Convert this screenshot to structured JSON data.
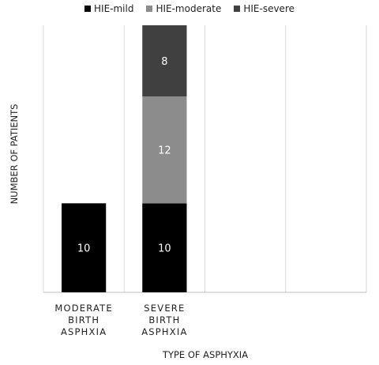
{
  "chart_data": {
    "type": "bar",
    "stacked": true,
    "categories": [
      [
        "MODERATE",
        "BIRTH",
        "ASPHXIA"
      ],
      [
        "SEVERE",
        "BIRTH",
        "ASPHXIA"
      ],
      [],
      []
    ],
    "series": [
      {
        "name": "HIE-mild",
        "color": "#000000",
        "values": [
          10,
          10,
          null,
          null
        ]
      },
      {
        "name": "HIE-moderate",
        "color": "#8c8c8c",
        "values": [
          null,
          12,
          null,
          null
        ]
      },
      {
        "name": "HIE-severe",
        "color": "#404040",
        "values": [
          null,
          8,
          null,
          null
        ]
      }
    ],
    "xlabel": "TYPE OF ASPHYXIA",
    "ylabel": "NUMBER OF PATIENTS",
    "ylim": [
      0,
      30
    ],
    "grid": "vertical",
    "legend": "top"
  }
}
